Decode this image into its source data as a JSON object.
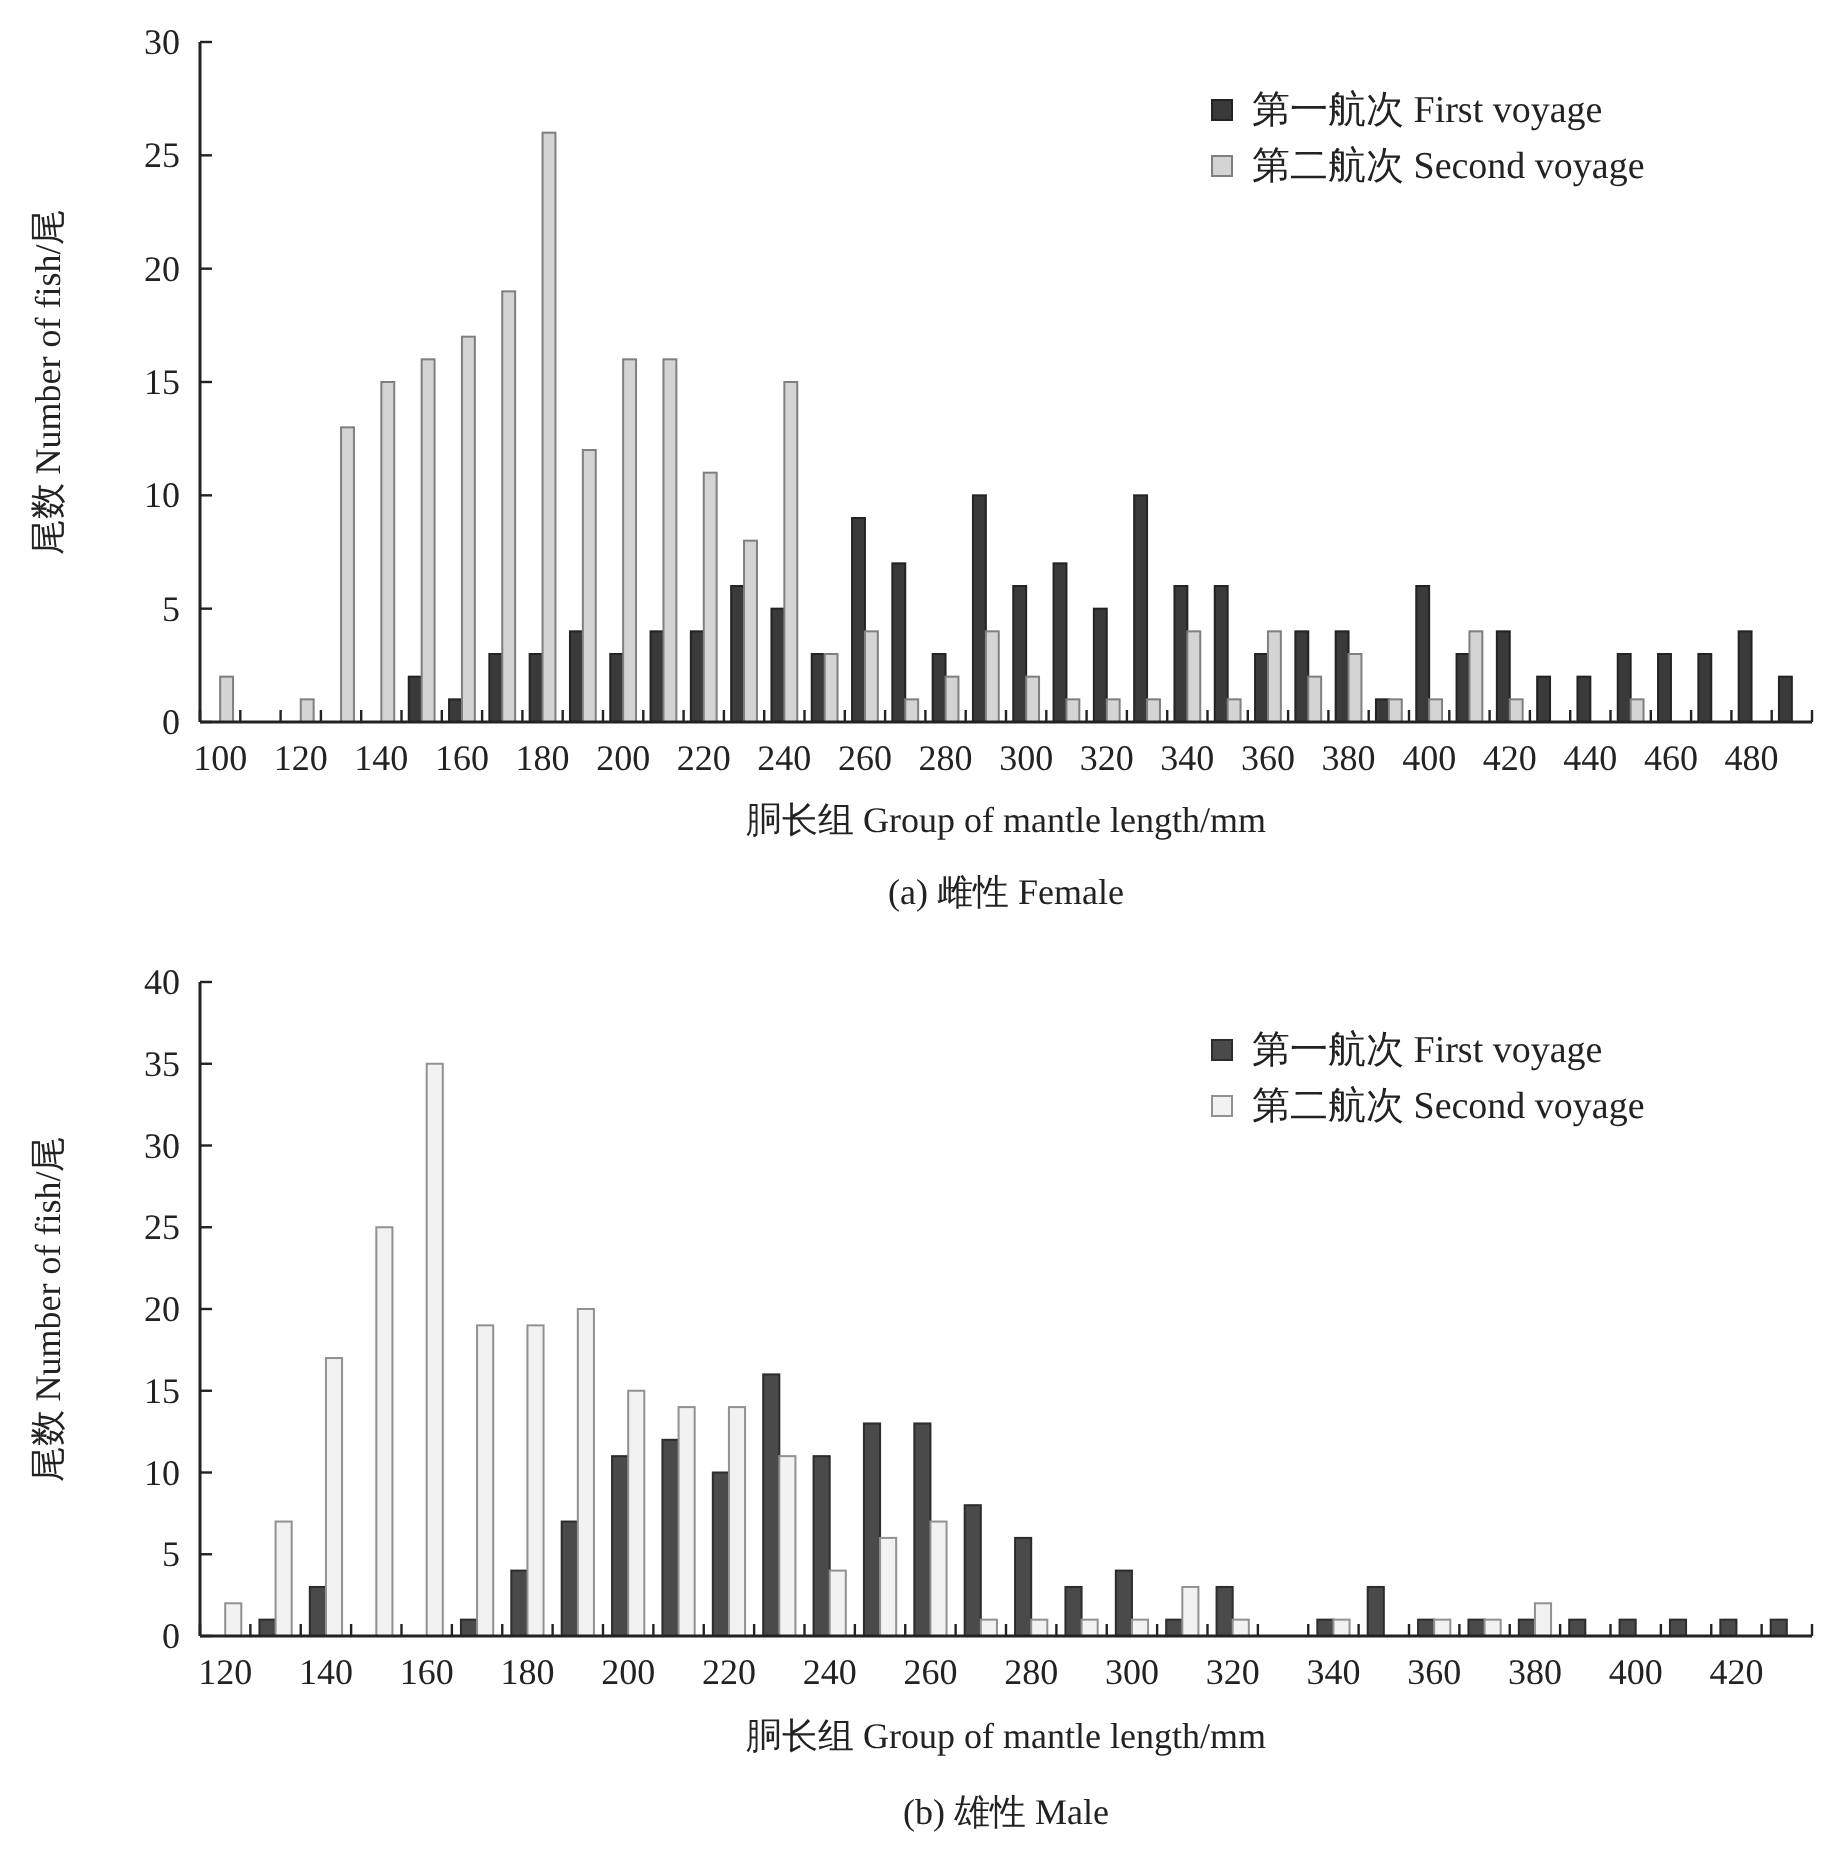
{
  "chart_data": [
    {
      "type": "bar",
      "title": "(a) 雌性 Female",
      "xlabel": "胴长组 Group of mantle length/mm",
      "ylabel": "尾数 Number of fish/尾",
      "categories": [
        "100",
        null,
        "120",
        null,
        "140",
        null,
        "160",
        null,
        "180",
        null,
        "200",
        null,
        "220",
        null,
        "240",
        null,
        "260",
        null,
        "280",
        null,
        "300",
        null,
        "320",
        null,
        "340",
        null,
        "360",
        null,
        "380",
        null,
        "400",
        null,
        "420",
        null,
        "440",
        null,
        "460",
        null,
        "480",
        null
      ],
      "series": [
        {
          "name": "第一航次 First voyage",
          "color": "#3a3a3a",
          "values": [
            0,
            0,
            0,
            0,
            0,
            2,
            1,
            3,
            3,
            4,
            3,
            4,
            4,
            6,
            5,
            3,
            9,
            7,
            3,
            10,
            6,
            7,
            5,
            10,
            6,
            6,
            3,
            4,
            4,
            1,
            6,
            3,
            4,
            2,
            2,
            3,
            3,
            3,
            4,
            2
          ]
        },
        {
          "name": "第二航次 Second voyage",
          "color": "#d4d4d4",
          "values": [
            2,
            0,
            1,
            13,
            15,
            16,
            17,
            19,
            26,
            12,
            16,
            16,
            11,
            8,
            15,
            3,
            4,
            1,
            2,
            4,
            2,
            1,
            1,
            1,
            4,
            1,
            4,
            2,
            3,
            1,
            1,
            4,
            1,
            0,
            0,
            1,
            0,
            0,
            0,
            0
          ]
        }
      ],
      "ylim": [
        0,
        30
      ],
      "yticks": [
        0,
        5,
        10,
        15,
        20,
        25,
        30
      ],
      "legend": "top right"
    },
    {
      "type": "bar",
      "title": "(b) 雄性 Male",
      "xlabel": "胴长组 Group of mantle length/mm",
      "ylabel": "尾数 Number of fish/尾",
      "categories": [
        "120",
        null,
        "140",
        null,
        "160",
        null,
        "180",
        null,
        "200",
        null,
        "220",
        null,
        "240",
        null,
        "260",
        null,
        "280",
        null,
        "300",
        null,
        "320",
        null,
        "340",
        null,
        "360",
        null,
        "380",
        null,
        "400",
        null,
        "420",
        null
      ],
      "series": [
        {
          "name": "第一航次 First voyage",
          "color": "#4a4a4a",
          "values": [
            0,
            1,
            3,
            0,
            0,
            1,
            4,
            7,
            11,
            12,
            10,
            16,
            11,
            13,
            13,
            8,
            6,
            3,
            4,
            1,
            3,
            0,
            1,
            3,
            1,
            1,
            1,
            1,
            1,
            1,
            1,
            1
          ]
        },
        {
          "name": "第二航次 Second voyage",
          "color": "#f2f2f2",
          "values": [
            2,
            7,
            17,
            25,
            35,
            19,
            19,
            20,
            15,
            14,
            14,
            11,
            4,
            6,
            7,
            1,
            1,
            1,
            1,
            3,
            1,
            0,
            1,
            0,
            1,
            1,
            2,
            0,
            0,
            0,
            0,
            0
          ]
        }
      ],
      "ylim": [
        0,
        40
      ],
      "yticks": [
        0,
        5,
        10,
        15,
        20,
        25,
        30,
        35,
        40
      ],
      "legend": "top right"
    }
  ]
}
